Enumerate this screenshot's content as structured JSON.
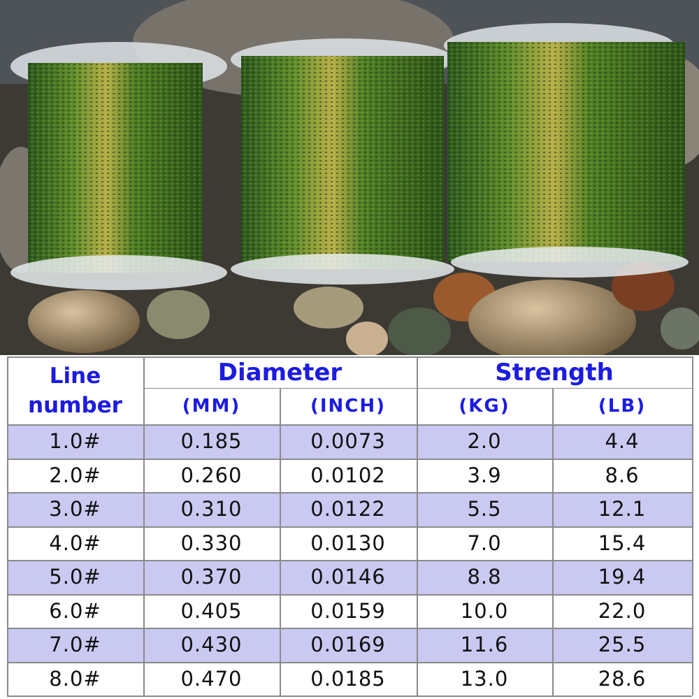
{
  "table": {
    "header": {
      "line_number": "Line number",
      "diameter": "Diameter",
      "strength": "Strength",
      "units": [
        "(MM)",
        "(INCH)",
        "(KG)",
        "(LB)"
      ]
    },
    "rows": [
      [
        "1.0#",
        "0.185",
        "0.0073",
        "2.0",
        "4.4"
      ],
      [
        "2.0#",
        "0.260",
        "0.0102",
        "3.9",
        "8.6"
      ],
      [
        "3.0#",
        "0.310",
        "0.0122",
        "5.5",
        "12.1"
      ],
      [
        "4.0#",
        "0.330",
        "0.0130",
        "7.0",
        "15.4"
      ],
      [
        "5.0#",
        "0.370",
        "0.0146",
        "8.8",
        "19.4"
      ],
      [
        "6.0#",
        "0.405",
        "0.0159",
        "10.0",
        "22.0"
      ],
      [
        "7.0#",
        "0.430",
        "0.0169",
        "11.6",
        "25.5"
      ],
      [
        "8.0#",
        "0.470",
        "0.0185",
        "13.0",
        "28.6"
      ]
    ]
  }
}
